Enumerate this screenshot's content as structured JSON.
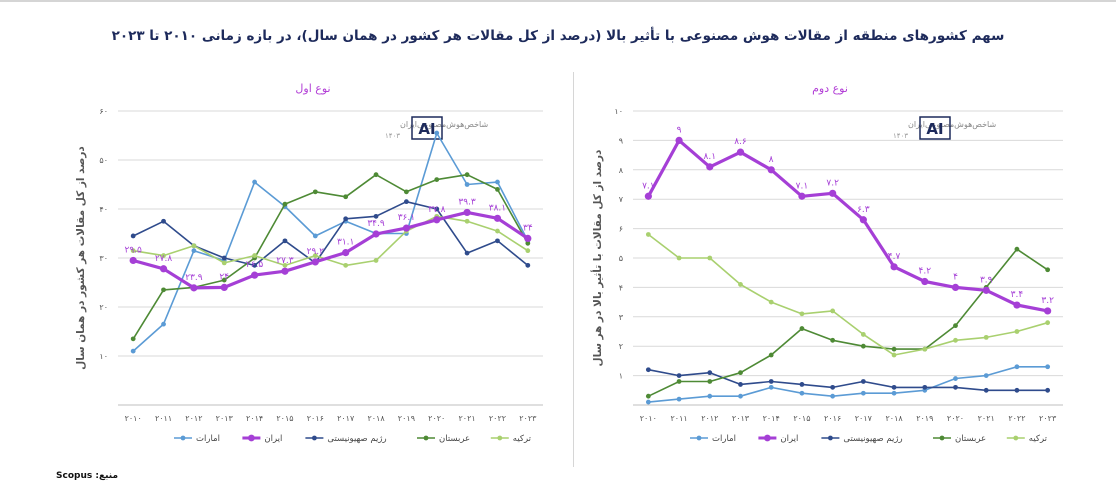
{
  "title": "سهم کشورهای منطقه از مقالات هوش مصنوعی با تأثیر بالا (درصد از کل مقالات هر کشور در همان سال)، در بازه زمانی ۲۰۱۰ تا ۲۰۲۳",
  "source": "منبع: Scopus",
  "watermark": {
    "name": "شاخص‌هوش‌مصنوعی‌ایران",
    "year": "۱۴۰۳",
    "logo": "AI"
  },
  "colors": {
    "امارات": "#5b9bd5",
    "ایران": "#a53fd6",
    "رژیم صهیونیستی": "#2f4b8c",
    "عربستان": "#4e8a35",
    "ترکیه": "#a9d06f"
  },
  "chart_data": [
    {
      "type": "line",
      "title": "نوع اول",
      "ylabel": "درصد از کل مقالات هر کشور در همان سال",
      "ylim": [
        0,
        60
      ],
      "yticks": [
        {
          "v": 10,
          "label": "۱۰"
        },
        {
          "v": 20,
          "label": "۲۰"
        },
        {
          "v": 30,
          "label": "۳۰"
        },
        {
          "v": 40,
          "label": "۴۰"
        },
        {
          "v": 50,
          "label": "۵۰"
        },
        {
          "v": 60,
          "label": "۶۰"
        }
      ],
      "x": [
        "۲۰۱۰",
        "۲۰۱۱",
        "۲۰۱۲",
        "۲۰۱۳",
        "۲۰۱۴",
        "۲۰۱۵",
        "۲۰۱۶",
        "۲۰۱۷",
        "۲۰۱۸",
        "۲۰۱۹",
        "۲۰۲۰",
        "۲۰۲۱",
        "۲۰۲۲",
        "۲۰۲۳"
      ],
      "grid": "horizontal",
      "legend": "bottom",
      "series": [
        {
          "name": "امارات",
          "values": [
            11.0,
            16.5,
            31.5,
            29.5,
            45.5,
            40.5,
            34.5,
            37.5,
            35.0,
            35.0,
            55.5,
            45.0,
            45.5,
            33.5
          ]
        },
        {
          "name": "ایران",
          "values": [
            29.5,
            27.8,
            23.9,
            24.0,
            26.5,
            27.3,
            29.2,
            31.1,
            34.9,
            36.1,
            37.8,
            39.3,
            38.1,
            34.0
          ]
        },
        {
          "name": "رژیم صهیونیستی",
          "values": [
            34.5,
            37.5,
            32.5,
            30.0,
            28.5,
            33.5,
            29.0,
            38.0,
            38.5,
            41.5,
            40.0,
            31.0,
            33.5,
            28.5
          ]
        },
        {
          "name": "عربستان",
          "values": [
            13.5,
            23.5,
            24.0,
            25.5,
            30.0,
            41.0,
            43.5,
            42.5,
            47.0,
            43.5,
            46.0,
            47.0,
            44.0,
            33.0
          ]
        },
        {
          "name": "ترکیه",
          "values": [
            31.5,
            30.5,
            32.5,
            29.0,
            30.5,
            28.5,
            30.5,
            28.5,
            29.5,
            35.5,
            38.5,
            37.5,
            35.5,
            31.5
          ]
        }
      ],
      "data_labels": {
        "series": "ایران",
        "labels": [
          "۲۹.۵",
          "۲۷.۸",
          "۲۳.۹",
          "۲۴",
          "۲۶.۵",
          "۲۷.۳",
          "۲۹.۲",
          "۳۱.۱",
          "۳۴.۹",
          "۳۶.۱",
          "۳۷.۸",
          "۳۹.۳",
          "۳۸.۱",
          "۳۴"
        ]
      }
    },
    {
      "type": "line",
      "title": "نوع دوم",
      "ylabel": "درصد از کل مقالات با تأثیر بالا در هر سال",
      "ylim": [
        0,
        10
      ],
      "yticks": [
        {
          "v": 1,
          "label": "۱"
        },
        {
          "v": 2,
          "label": "۲"
        },
        {
          "v": 3,
          "label": "۳"
        },
        {
          "v": 4,
          "label": "۴"
        },
        {
          "v": 5,
          "label": "۵"
        },
        {
          "v": 6,
          "label": "۶"
        },
        {
          "v": 7,
          "label": "۷"
        },
        {
          "v": 8,
          "label": "۸"
        },
        {
          "v": 9,
          "label": "۹"
        },
        {
          "v": 10,
          "label": "۱۰"
        }
      ],
      "x": [
        "۲۰۱۰",
        "۲۰۱۱",
        "۲۰۱۲",
        "۲۰۱۳",
        "۲۰۱۴",
        "۲۰۱۵",
        "۲۰۱۶",
        "۲۰۱۷",
        "۲۰۱۸",
        "۲۰۱۹",
        "۲۰۲۰",
        "۲۰۲۱",
        "۲۰۲۲",
        "۲۰۲۳"
      ],
      "grid": "horizontal",
      "legend": "bottom",
      "series": [
        {
          "name": "امارات",
          "values": [
            0.1,
            0.2,
            0.3,
            0.3,
            0.6,
            0.4,
            0.3,
            0.4,
            0.4,
            0.5,
            0.9,
            1.0,
            1.3,
            1.3
          ]
        },
        {
          "name": "ایران",
          "values": [
            7.1,
            9.0,
            8.1,
            8.6,
            8.0,
            7.1,
            7.2,
            6.3,
            4.7,
            4.2,
            4.0,
            3.9,
            3.4,
            3.2
          ]
        },
        {
          "name": "رژیم صهیونیستی",
          "values": [
            1.2,
            1.0,
            1.1,
            0.7,
            0.8,
            0.7,
            0.6,
            0.8,
            0.6,
            0.6,
            0.6,
            0.5,
            0.5,
            0.5
          ]
        },
        {
          "name": "عربستان",
          "values": [
            0.3,
            0.8,
            0.8,
            1.1,
            1.7,
            2.6,
            2.2,
            2.0,
            1.9,
            1.9,
            2.7,
            4.0,
            5.3,
            4.6
          ]
        },
        {
          "name": "ترکیه",
          "values": [
            5.8,
            5.0,
            5.0,
            4.1,
            3.5,
            3.1,
            3.2,
            2.4,
            1.7,
            1.9,
            2.2,
            2.3,
            2.5,
            2.8
          ]
        }
      ],
      "data_labels": {
        "series": "ایران",
        "labels": [
          "۷.۱",
          "۹",
          "۸.۱",
          "۸.۶",
          "۸",
          "۷.۱",
          "۷.۲",
          "۶.۳",
          "۴.۷",
          "۴.۲",
          "۴",
          "۳.۹",
          "۳.۴",
          "۳.۲"
        ]
      }
    }
  ]
}
